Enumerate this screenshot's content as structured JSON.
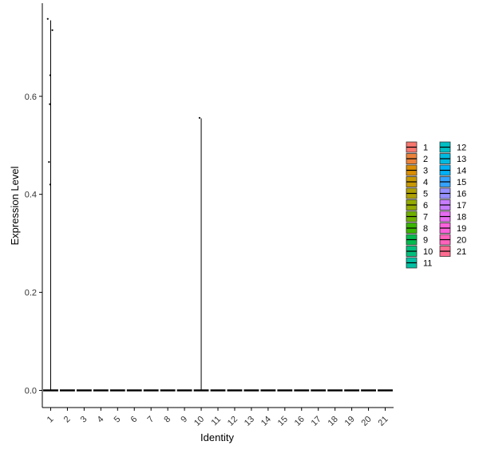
{
  "chart_data": {
    "type": "violin",
    "xlabel": "Identity",
    "ylabel": "Expression Level",
    "categories": [
      "1",
      "2",
      "3",
      "4",
      "5",
      "6",
      "7",
      "8",
      "9",
      "10",
      "11",
      "12",
      "13",
      "14",
      "15",
      "16",
      "17",
      "18",
      "19",
      "20",
      "21"
    ],
    "yticks": [
      0.0,
      0.2,
      0.4,
      0.6
    ],
    "ytick_labels": [
      "0.0",
      "0.2",
      "0.4",
      "0.6"
    ],
    "ylim": [
      -0.035,
      0.79
    ],
    "violins": [
      {
        "category": "1",
        "max": 0.755
      },
      {
        "category": "10",
        "max": 0.555
      }
    ],
    "points": [
      {
        "category": "1",
        "y": 0.758,
        "jitter": -0.35
      },
      {
        "category": "1",
        "y": 0.735,
        "jitter": 0.2
      },
      {
        "category": "1",
        "y": 0.643,
        "jitter": -0.05
      },
      {
        "category": "1",
        "y": 0.584,
        "jitter": -0.1
      },
      {
        "category": "1",
        "y": 0.466,
        "jitter": -0.2
      },
      {
        "category": "1",
        "y": 0.42,
        "jitter": -0.05
      },
      {
        "category": "10",
        "y": 0.556,
        "jitter": -0.2
      }
    ],
    "legend": {
      "position": "right",
      "labels": [
        "1",
        "2",
        "3",
        "4",
        "5",
        "6",
        "7",
        "8",
        "9",
        "10",
        "11",
        "12",
        "13",
        "14",
        "15",
        "16",
        "17",
        "18",
        "19",
        "20",
        "21"
      ],
      "colors": [
        "#F8766D",
        "#EC8239",
        "#DB8E00",
        "#C79800",
        "#AFA100",
        "#93AA00",
        "#6FB000",
        "#39B600",
        "#00BB4E",
        "#00BF7D",
        "#00C1A3",
        "#00BFC4",
        "#00BAE0",
        "#00B0F6",
        "#35A2FF",
        "#9590FF",
        "#C77CFF",
        "#E76BF3",
        "#FA62DB",
        "#FF62BC",
        "#FF6C91"
      ]
    },
    "grid": false
  }
}
